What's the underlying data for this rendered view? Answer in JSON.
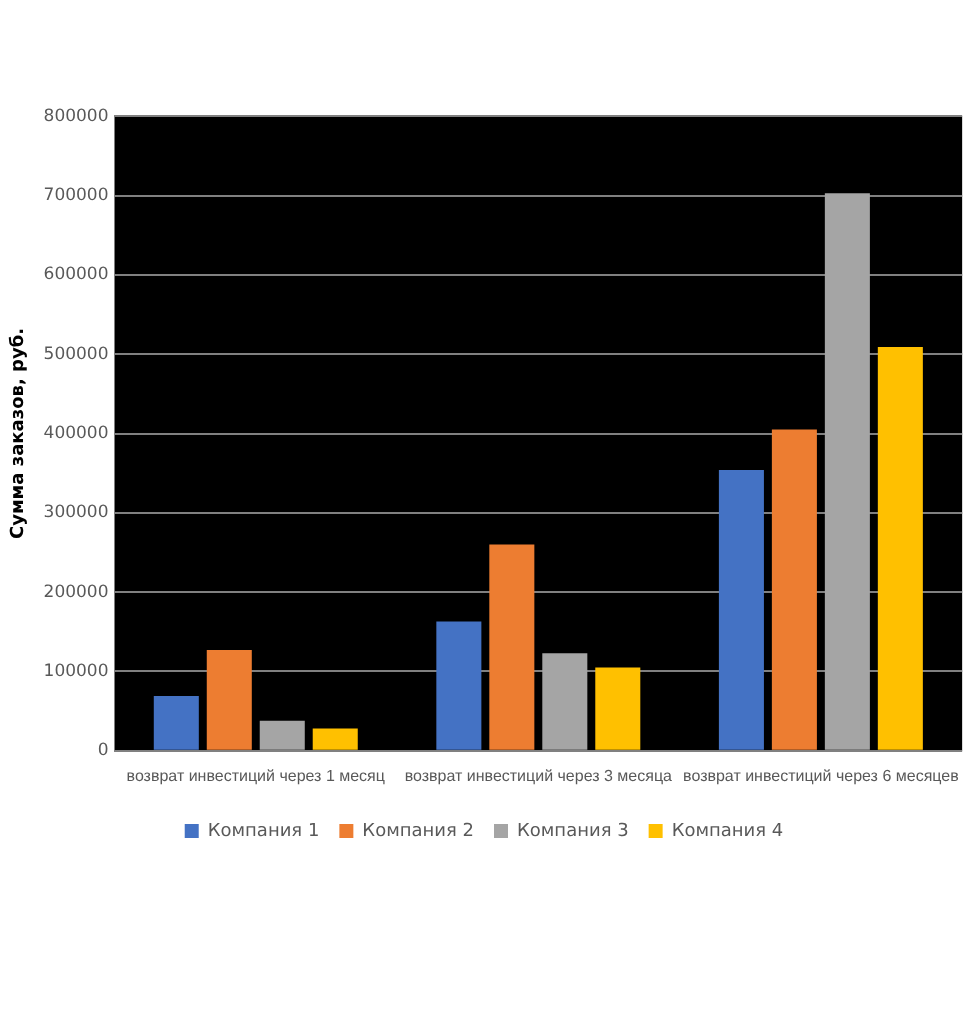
{
  "chart_data": {
    "type": "bar",
    "ylabel": "Сумма заказов, руб.",
    "categories": [
      "возврат инвестиций через 1 месяц",
      "возврат инвестиций через 3 месяца",
      "возврат инвестиций через 6 месяцев"
    ],
    "series": [
      {
        "name": "Компания 1",
        "color": "#4472c4",
        "values": [
          69000,
          163000,
          354000
        ]
      },
      {
        "name": "Компания 2",
        "color": "#ed7d31",
        "values": [
          127000,
          260000,
          405000
        ]
      },
      {
        "name": "Компания 3",
        "color": "#a5a5a5",
        "values": [
          38000,
          123000,
          703000
        ]
      },
      {
        "name": "Компания 4",
        "color": "#ffc000",
        "values": [
          28000,
          105000,
          509000
        ]
      }
    ],
    "ylim": [
      0,
      800000
    ],
    "yticks": [
      0,
      100000,
      200000,
      300000,
      400000,
      500000,
      600000,
      700000,
      800000
    ],
    "grid": "y",
    "legend": "bottom"
  }
}
